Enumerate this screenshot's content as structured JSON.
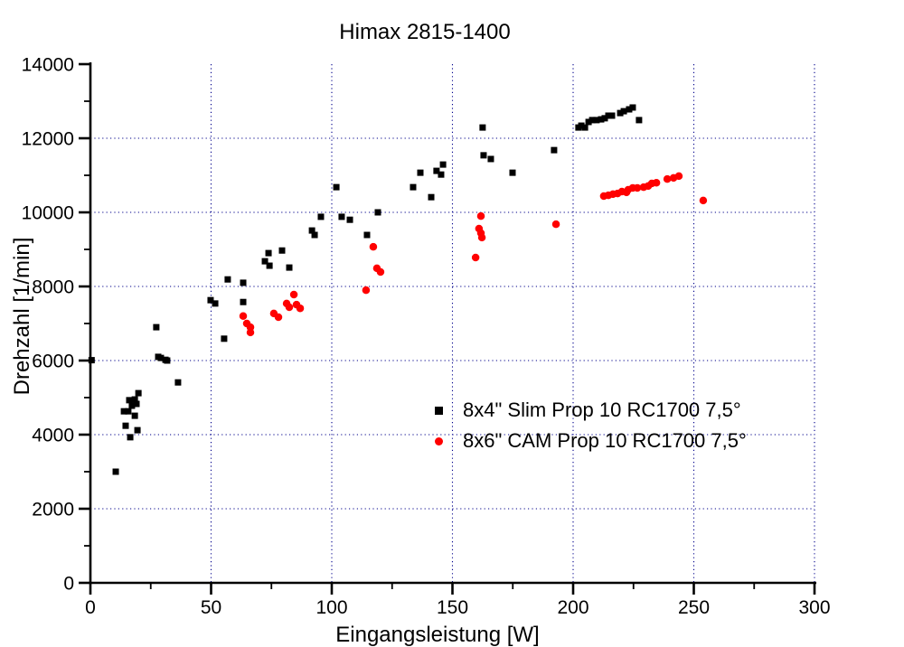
{
  "title": "Himax 2815-1400",
  "background_color": "#ffffff",
  "grid": {
    "color": "#00008B",
    "style": "dotted",
    "x_lines": [
      50,
      100,
      150,
      200,
      250,
      300
    ],
    "y_lines": [
      2000,
      4000,
      6000,
      8000,
      10000,
      12000
    ]
  },
  "axes": {
    "x": {
      "label": "Eingangsleistung [W]",
      "min": 0,
      "max": 300,
      "major_ticks": [
        0,
        50,
        100,
        150,
        200,
        250,
        300
      ],
      "minor_ticks": [
        25,
        75,
        125,
        175,
        225,
        275
      ],
      "tick_labels": [
        "0",
        "50",
        "100",
        "150",
        "200",
        "250",
        "300"
      ]
    },
    "y": {
      "label": "Drehzahl [1/min]",
      "min": 0,
      "max": 14000,
      "major_ticks": [
        0,
        2000,
        4000,
        6000,
        8000,
        10000,
        12000,
        14000
      ],
      "minor_ticks": [
        1000,
        3000,
        5000,
        7000,
        9000,
        11000,
        13000
      ],
      "tick_labels": [
        "0",
        "2000",
        "4000",
        "6000",
        "8000",
        "10000",
        "12000",
        "14000"
      ]
    }
  },
  "legend": {
    "items": [
      {
        "label": "8x4\" Slim Prop 10 RC1700 7,5°",
        "marker": "square",
        "color": "#000000"
      },
      {
        "label": "8x6\" CAM Prop 10 RC1700 7,5°",
        "marker": "circle",
        "color": "#ff0000"
      }
    ]
  },
  "chart_data": {
    "type": "scatter",
    "title": "Himax 2815-1400",
    "xlabel": "Eingangsleistung [W]",
    "ylabel": "Drehzahl [1/min]",
    "xlim": [
      0,
      300
    ],
    "ylim": [
      0,
      14000
    ],
    "grid": true,
    "legend_position": "inside-right-middle",
    "series": [
      {
        "name": "8x4\" Slim Prop 10 RC1700 7,5°",
        "marker": "square",
        "color": "#000000",
        "size": 7,
        "points": [
          [
            0.5,
            6010
          ],
          [
            10.5,
            3000
          ],
          [
            13.9,
            4630
          ],
          [
            15.7,
            4630
          ],
          [
            14.6,
            4240
          ],
          [
            16.5,
            3930
          ],
          [
            19.5,
            4120
          ],
          [
            18.4,
            4510
          ],
          [
            16.1,
            4930
          ],
          [
            18.4,
            4950
          ],
          [
            17.2,
            4780
          ],
          [
            19.1,
            4830
          ],
          [
            19.9,
            5120
          ],
          [
            27.3,
            6900
          ],
          [
            28.1,
            6100
          ],
          [
            29.2,
            6070
          ],
          [
            31.1,
            6020
          ],
          [
            31.8,
            6000
          ],
          [
            36.3,
            5410
          ],
          [
            49.8,
            7630
          ],
          [
            51.7,
            7540
          ],
          [
            55.4,
            6590
          ],
          [
            56.9,
            8190
          ],
          [
            63.3,
            8100
          ],
          [
            63.3,
            7580
          ],
          [
            72.3,
            8680
          ],
          [
            74.2,
            8560
          ],
          [
            73.8,
            8900
          ],
          [
            79.4,
            8970
          ],
          [
            82.4,
            8510
          ],
          [
            91.8,
            9510
          ],
          [
            92.9,
            9390
          ],
          [
            95.5,
            9880
          ],
          [
            101.9,
            10680
          ],
          [
            104.1,
            9880
          ],
          [
            107.5,
            9800
          ],
          [
            114.6,
            9390
          ],
          [
            119.1,
            10000
          ],
          [
            133.7,
            10680
          ],
          [
            136.7,
            11070
          ],
          [
            141.2,
            10410
          ],
          [
            143.4,
            11120
          ],
          [
            145.3,
            11020
          ],
          [
            146.1,
            11290
          ],
          [
            162.5,
            12290
          ],
          [
            162.9,
            11540
          ],
          [
            165.9,
            11440
          ],
          [
            174.9,
            11070
          ],
          [
            192.1,
            11680
          ],
          [
            202.2,
            12290
          ],
          [
            203.4,
            12340
          ],
          [
            204.9,
            12290
          ],
          [
            206.4,
            12440
          ],
          [
            207.9,
            12490
          ],
          [
            209.7,
            12490
          ],
          [
            211.6,
            12510
          ],
          [
            213.1,
            12540
          ],
          [
            214.6,
            12610
          ],
          [
            216.1,
            12610
          ],
          [
            219.5,
            12680
          ],
          [
            221.0,
            12730
          ],
          [
            223.2,
            12780
          ],
          [
            224.7,
            12830
          ],
          [
            227.3,
            12490
          ]
        ]
      },
      {
        "name": "8x6\" CAM Prop 10 RC1700 7,5°",
        "marker": "circle",
        "color": "#ff0000",
        "size": 8.5,
        "points": [
          [
            63.3,
            7200
          ],
          [
            64.8,
            7000
          ],
          [
            66.3,
            6900
          ],
          [
            66.3,
            6760
          ],
          [
            76.0,
            7270
          ],
          [
            77.9,
            7170
          ],
          [
            81.3,
            7540
          ],
          [
            82.4,
            7440
          ],
          [
            84.3,
            7780
          ],
          [
            85.4,
            7510
          ],
          [
            86.9,
            7410
          ],
          [
            114.2,
            7900
          ],
          [
            117.2,
            9070
          ],
          [
            118.7,
            8490
          ],
          [
            120.2,
            8390
          ],
          [
            159.6,
            8780
          ],
          [
            161.0,
            9560
          ],
          [
            161.8,
            9440
          ],
          [
            162.2,
            9320
          ],
          [
            161.8,
            9900
          ],
          [
            192.9,
            9680
          ],
          [
            212.7,
            10440
          ],
          [
            214.6,
            10460
          ],
          [
            216.5,
            10490
          ],
          [
            218.4,
            10510
          ],
          [
            220.2,
            10560
          ],
          [
            222.1,
            10540
          ],
          [
            222.8,
            10610
          ],
          [
            224.7,
            10660
          ],
          [
            226.6,
            10660
          ],
          [
            229.2,
            10680
          ],
          [
            231.1,
            10710
          ],
          [
            232.6,
            10780
          ],
          [
            234.5,
            10800
          ],
          [
            239.0,
            10900
          ],
          [
            241.6,
            10930
          ],
          [
            243.8,
            10980
          ],
          [
            253.9,
            10320
          ]
        ]
      }
    ]
  }
}
